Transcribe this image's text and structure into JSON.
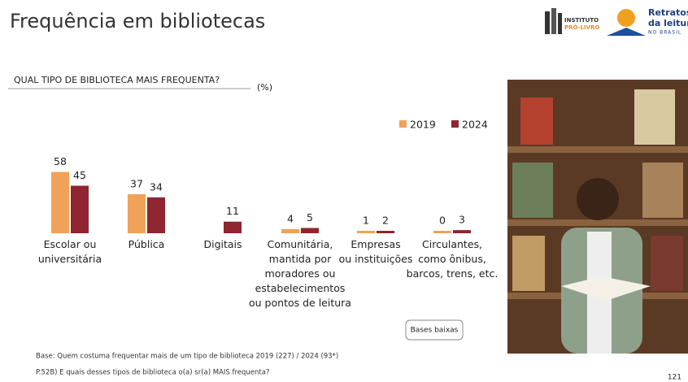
{
  "header": {
    "title": "Frequência em bibliotecas",
    "logo_1": [
      "INSTITUTO",
      "PRÓ-LIVRO"
    ],
    "logo_2": [
      "Retratos",
      "da leitura",
      "NO BRASIL"
    ]
  },
  "chart_data": {
    "type": "bar",
    "title": "QUAL TIPO DE BIBLIOTECA MAIS FREQUENTA?",
    "unit_label": "(%)",
    "categories": [
      "Escolar ou\nuniversitária",
      "Pública",
      "Digitais",
      "Comunitária,\nmantida por\nmoradores ou\nestabelecimentos\nou pontos de leitura",
      "Empresas\nou instituições",
      "Circulantes,\ncomo ônibus,\nbarcos, trens, etc."
    ],
    "series": [
      {
        "name": "2019",
        "color": "#f0a258",
        "values": [
          58,
          37,
          null,
          4,
          1,
          0
        ]
      },
      {
        "name": "2024",
        "color": "#8e2530",
        "values": [
          45,
          34,
          11,
          5,
          2,
          3
        ]
      }
    ],
    "legend": "top-right"
  },
  "note_button": "Bases baixas",
  "footnotes": [
    "Base: Quem costuma frequentar mais de um tipo de biblioteca 2019 (227) / 2024 (93*)",
    "P.52B) E quais desses tipos de biblioteca o(a) sr(a) MAIS frequenta?"
  ],
  "page_number": "121"
}
